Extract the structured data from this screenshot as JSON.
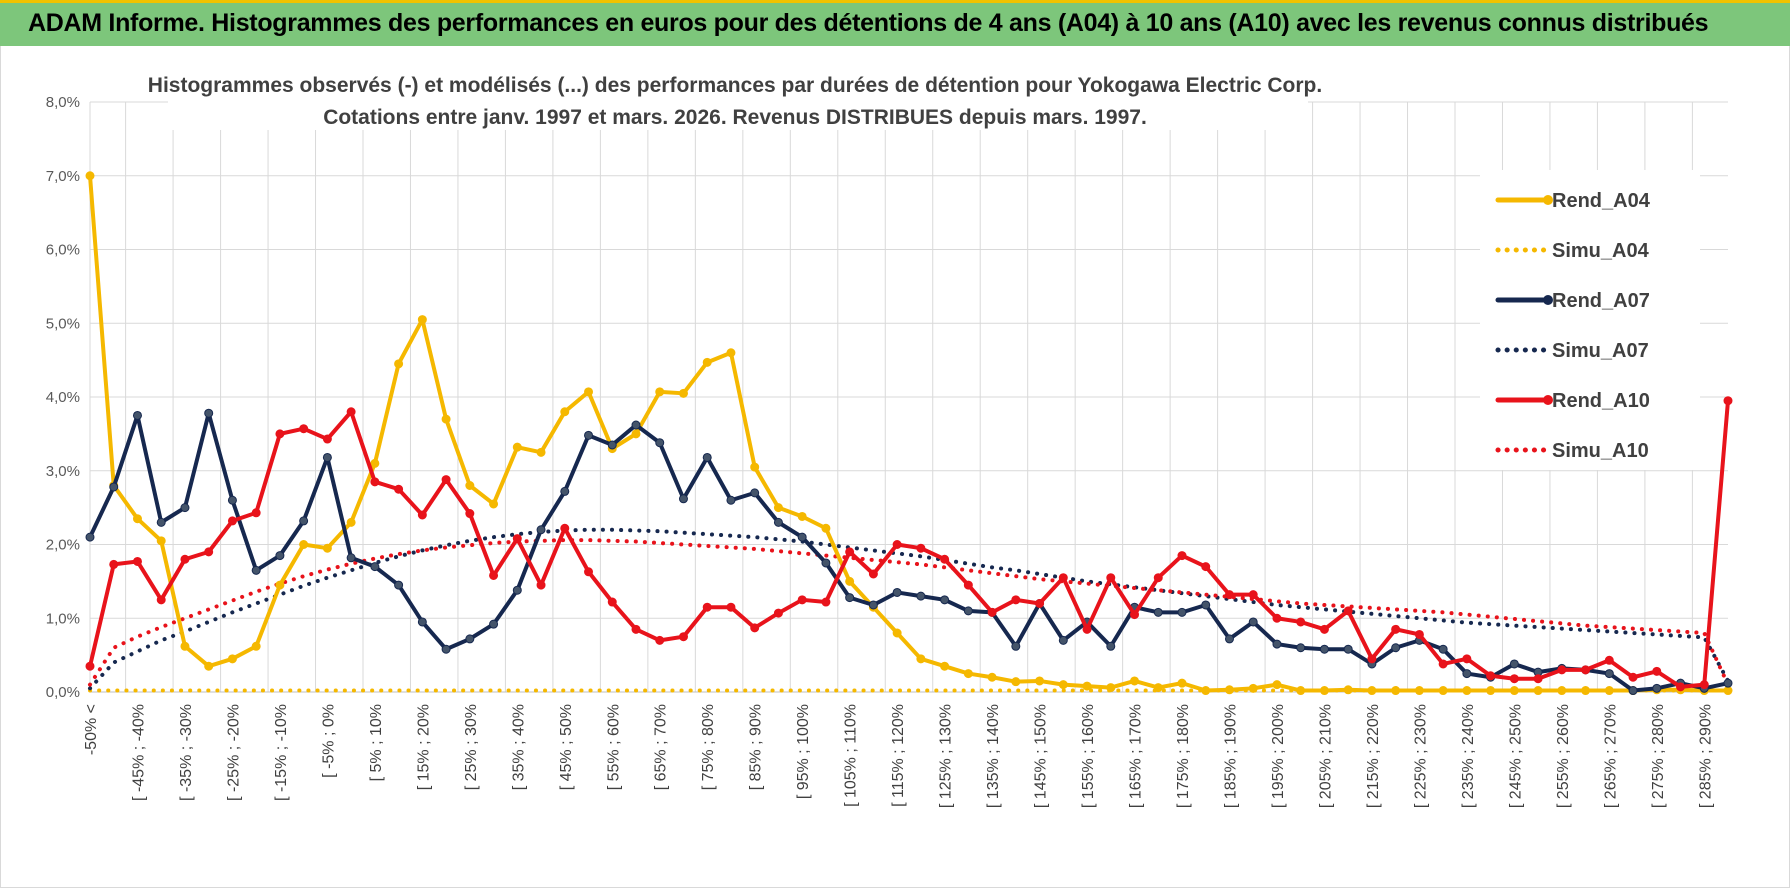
{
  "header": {
    "title": "ADAM Informe. Histogrammes des performances en euros pour des détentions de 4 ans (A04) à 10 ans (A10) avec les revenus connus distribués"
  },
  "chart_data": {
    "type": "line",
    "title_lines": [
      "Histogrammes observés (-) et modélisés (...) des performances par durées de détention pour Yokogawa Electric Corp.",
      "Cotations entre janv. 1997 et mars. 2026. Revenus DISTRIBUES depuis mars. 1997."
    ],
    "xlabel": "",
    "ylabel": "",
    "ylim": [
      0,
      8
    ],
    "y_ticks": [
      "0,0%",
      "1,0%",
      "2,0%",
      "3,0%",
      "4,0%",
      "5,0%",
      "6,0%",
      "7,0%",
      "8,0%"
    ],
    "grid": true,
    "legend_position": "right",
    "x_count": 70,
    "x_tick_labels": [
      "-50% <",
      "[ -45% ; -40%",
      "[ -35% ; -30%",
      "[ -25% ; -20%",
      "[ -15% ; -10%",
      "[ -5% ; 0%",
      "[ 5% ; 10%",
      "[ 15% ; 20%",
      "[ 25% ; 30%",
      "[ 35% ; 40%",
      "[ 45% ; 50%",
      "[ 55% ; 60%",
      "[ 65% ; 70%",
      "[ 75% ; 80%",
      "[ 85% ; 90%",
      "[ 95% ; 100%",
      "[ 105% ; 110%",
      "[ 115% ; 120%",
      "[ 125% ; 130%",
      "[ 135% ; 140%",
      "[ 145% ; 150%",
      "[ 155% ; 160%",
      "[ 165% ; 170%",
      "[ 175% ; 180%",
      "[ 185% ; 190%",
      "[ 195% ; 200%",
      "[ 205% ; 210%",
      "[ 215% ; 220%",
      "[ 225% ; 230%",
      "[ 235% ; 240%",
      "[ 245% ; 250%",
      "[ 255% ; 260%",
      "[ 265% ; 270%",
      "[ 275% ; 280%",
      "[ 285% ; 290%"
    ],
    "series": [
      {
        "name": "Rend_A04",
        "color": "#f5b800",
        "style": "solid",
        "markers": true,
        "values": [
          7.0,
          2.8,
          2.35,
          2.05,
          0.62,
          0.35,
          0.45,
          0.62,
          1.45,
          2.0,
          1.95,
          2.3,
          3.1,
          4.45,
          5.05,
          3.7,
          2.8,
          2.55,
          3.32,
          3.25,
          3.8,
          4.07,
          3.3,
          3.5,
          4.07,
          4.05,
          4.47,
          4.6,
          3.05,
          2.5,
          2.38,
          2.22,
          1.5,
          1.15,
          0.8,
          0.45,
          0.35,
          0.25,
          0.2,
          0.14,
          0.15,
          0.1,
          0.08,
          0.06,
          0.15,
          0.06,
          0.12,
          0.02,
          0.03,
          0.05,
          0.1,
          0.02,
          0.02,
          0.03,
          0.02,
          0.02,
          0.02,
          0.02,
          0.02,
          0.02,
          0.02,
          0.02,
          0.02,
          0.02,
          0.02,
          0.02,
          0.03,
          0.03,
          0.02,
          0.02
        ]
      },
      {
        "name": "Simu_A04",
        "color": "#f5b800",
        "style": "dotted",
        "markers": false,
        "values": [
          0.02,
          0.02,
          0.02,
          0.02,
          0.02,
          0.02,
          0.02,
          0.02,
          0.02,
          0.02,
          0.02,
          0.02,
          0.02,
          0.02,
          0.02,
          0.02,
          0.02,
          0.02,
          0.02,
          0.02,
          0.02,
          0.02,
          0.02,
          0.02,
          0.02,
          0.02,
          0.02,
          0.02,
          0.02,
          0.02,
          0.02,
          0.02,
          0.02,
          0.02,
          0.02,
          0.02,
          0.02,
          0.02,
          0.02,
          0.02,
          0.02,
          0.02,
          0.02,
          0.02,
          0.02,
          0.02,
          0.02,
          0.02,
          0.02,
          0.02,
          0.02,
          0.02,
          0.02,
          0.02,
          0.02,
          0.02,
          0.02,
          0.02,
          0.02,
          0.02,
          0.02,
          0.02,
          0.02,
          0.02,
          0.02,
          0.02,
          0.02,
          0.02,
          0.02,
          0.02
        ]
      },
      {
        "name": "Rend_A07",
        "color": "#16284f",
        "style": "solid",
        "markers": true,
        "values": [
          2.1,
          2.78,
          3.75,
          2.3,
          2.5,
          3.78,
          2.6,
          1.65,
          1.85,
          2.32,
          3.18,
          1.82,
          1.7,
          1.45,
          0.95,
          0.58,
          0.72,
          0.92,
          1.38,
          2.2,
          2.72,
          3.48,
          3.35,
          3.62,
          3.38,
          2.62,
          3.18,
          2.6,
          2.7,
          2.3,
          2.1,
          1.75,
          1.28,
          1.18,
          1.35,
          1.3,
          1.25,
          1.1,
          1.08,
          0.62,
          1.2,
          0.7,
          0.95,
          0.62,
          1.15,
          1.08,
          1.08,
          1.18,
          0.72,
          0.95,
          0.65,
          0.6,
          0.58,
          0.58,
          0.38,
          0.6,
          0.7,
          0.58,
          0.25,
          0.2,
          0.38,
          0.27,
          0.32,
          0.3,
          0.25,
          0.02,
          0.05,
          0.12,
          0.05,
          0.12
        ]
      },
      {
        "name": "Simu_A07",
        "color": "#16284f",
        "style": "dotted",
        "markers": false,
        "values": [
          0.05,
          0.4,
          0.55,
          0.7,
          0.82,
          0.95,
          1.08,
          1.2,
          1.32,
          1.44,
          1.55,
          1.65,
          1.75,
          1.84,
          1.92,
          1.99,
          2.05,
          2.1,
          2.14,
          2.17,
          2.19,
          2.2,
          2.2,
          2.19,
          2.18,
          2.16,
          2.14,
          2.12,
          2.1,
          2.07,
          2.04,
          2.0,
          1.96,
          1.92,
          1.88,
          1.84,
          1.79,
          1.74,
          1.69,
          1.65,
          1.6,
          1.55,
          1.5,
          1.46,
          1.42,
          1.38,
          1.34,
          1.3,
          1.26,
          1.22,
          1.18,
          1.15,
          1.12,
          1.09,
          1.06,
          1.03,
          1.0,
          0.97,
          0.94,
          0.92,
          0.9,
          0.88,
          0.86,
          0.84,
          0.82,
          0.8,
          0.78,
          0.76,
          0.74,
          0.15
        ]
      },
      {
        "name": "Rend_A10",
        "color": "#e8131b",
        "style": "solid",
        "markers": true,
        "values": [
          0.35,
          1.73,
          1.77,
          1.25,
          1.8,
          1.9,
          2.32,
          2.43,
          3.5,
          3.57,
          3.43,
          3.8,
          2.85,
          2.75,
          2.4,
          2.88,
          2.42,
          1.58,
          2.08,
          1.45,
          2.22,
          1.63,
          1.22,
          0.85,
          0.7,
          0.75,
          1.15,
          1.15,
          0.87,
          1.07,
          1.25,
          1.22,
          1.9,
          1.6,
          2.0,
          1.95,
          1.8,
          1.45,
          1.08,
          1.25,
          1.2,
          1.55,
          0.85,
          1.55,
          1.05,
          1.55,
          1.85,
          1.7,
          1.32,
          1.32,
          1.0,
          0.95,
          0.85,
          1.1,
          0.45,
          0.85,
          0.78,
          0.38,
          0.45,
          0.22,
          0.18,
          0.18,
          0.3,
          0.3,
          0.43,
          0.2,
          0.28,
          0.07,
          0.1,
          3.95
        ]
      },
      {
        "name": "Simu_A10",
        "color": "#e8131b",
        "style": "dotted",
        "markers": false,
        "values": [
          0.1,
          0.6,
          0.75,
          0.88,
          1.0,
          1.12,
          1.24,
          1.36,
          1.47,
          1.57,
          1.66,
          1.74,
          1.81,
          1.87,
          1.92,
          1.96,
          1.99,
          2.02,
          2.04,
          2.05,
          2.06,
          2.06,
          2.05,
          2.04,
          2.02,
          2.0,
          1.98,
          1.96,
          1.94,
          1.91,
          1.88,
          1.85,
          1.82,
          1.79,
          1.76,
          1.73,
          1.69,
          1.65,
          1.61,
          1.57,
          1.53,
          1.5,
          1.47,
          1.44,
          1.41,
          1.38,
          1.35,
          1.32,
          1.29,
          1.26,
          1.23,
          1.2,
          1.18,
          1.16,
          1.14,
          1.12,
          1.1,
          1.08,
          1.05,
          1.02,
          0.99,
          0.96,
          0.93,
          0.9,
          0.88,
          0.86,
          0.84,
          0.82,
          0.8,
          0.1
        ]
      }
    ]
  }
}
